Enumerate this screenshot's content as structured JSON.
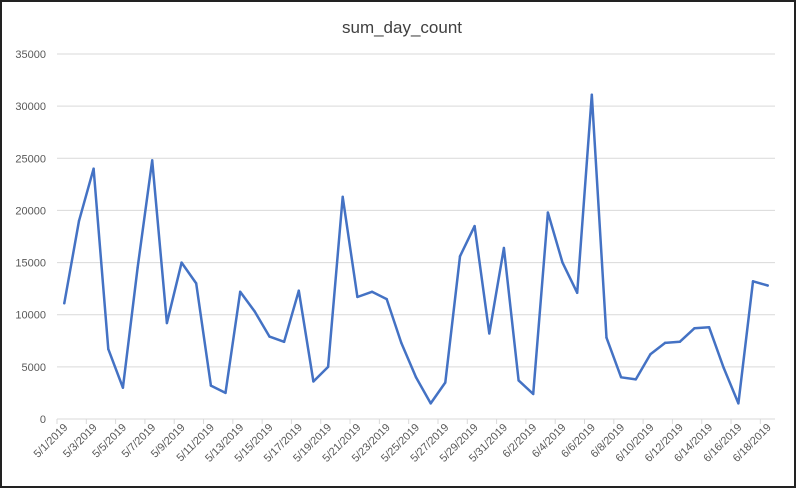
{
  "chart_data": {
    "type": "line",
    "title": "sum_day_count",
    "xlabel": "",
    "ylabel": "",
    "ylim": [
      0,
      35000
    ],
    "y_ticks": [
      0,
      5000,
      10000,
      15000,
      20000,
      25000,
      30000,
      35000
    ],
    "y_tick_labels": [
      "0",
      "5000",
      "10000",
      "15000",
      "20000",
      "25000",
      "30000",
      "35000"
    ],
    "grid": "horizontal",
    "legend": "none",
    "line_color": "#4472C4",
    "x": [
      "5/1/2019",
      "5/2/2019",
      "5/3/2019",
      "5/4/2019",
      "5/5/2019",
      "5/6/2019",
      "5/7/2019",
      "5/8/2019",
      "5/9/2019",
      "5/10/2019",
      "5/11/2019",
      "5/12/2019",
      "5/13/2019",
      "5/14/2019",
      "5/15/2019",
      "5/16/2019",
      "5/17/2019",
      "5/18/2019",
      "5/19/2019",
      "5/20/2019",
      "5/21/2019",
      "5/22/2019",
      "5/23/2019",
      "5/24/2019",
      "5/25/2019",
      "5/26/2019",
      "5/27/2019",
      "5/28/2019",
      "5/29/2019",
      "5/30/2019",
      "5/31/2019",
      "6/1/2019",
      "6/2/2019",
      "6/3/2019",
      "6/4/2019",
      "6/5/2019",
      "6/6/2019",
      "6/7/2019",
      "6/8/2019",
      "6/9/2019",
      "6/10/2019",
      "6/11/2019",
      "6/12/2019",
      "6/13/2019",
      "6/14/2019",
      "6/15/2019",
      "6/16/2019",
      "6/17/2019",
      "6/18/2019"
    ],
    "x_tick_labels": [
      "5/1/2019",
      "5/3/2019",
      "5/5/2019",
      "5/7/2019",
      "5/9/2019",
      "5/11/2019",
      "5/13/2019",
      "5/15/2019",
      "5/17/2019",
      "5/19/2019",
      "5/21/2019",
      "5/23/2019",
      "5/25/2019",
      "5/27/2019",
      "5/29/2019",
      "5/31/2019",
      "6/2/2019",
      "6/4/2019",
      "6/6/2019",
      "6/8/2019",
      "6/10/2019",
      "6/12/2019",
      "6/14/2019",
      "6/16/2019",
      "6/18/2019"
    ],
    "series": [
      {
        "values": [
          11100,
          19000,
          24000,
          6700,
          3000,
          14500,
          24800,
          9200,
          15000,
          13000,
          3200,
          2500,
          12200,
          10300,
          7900,
          7400,
          12300,
          3600,
          5000,
          21300,
          11700,
          12200,
          11500,
          7300,
          4000,
          1500,
          3500,
          15600,
          18500,
          8200,
          16400,
          3700,
          2400,
          19800,
          15000,
          12100,
          31100,
          7800,
          4000,
          3800,
          6200,
          7300,
          7400,
          8700,
          8800,
          4900,
          1500,
          13200,
          12800
        ]
      }
    ]
  }
}
